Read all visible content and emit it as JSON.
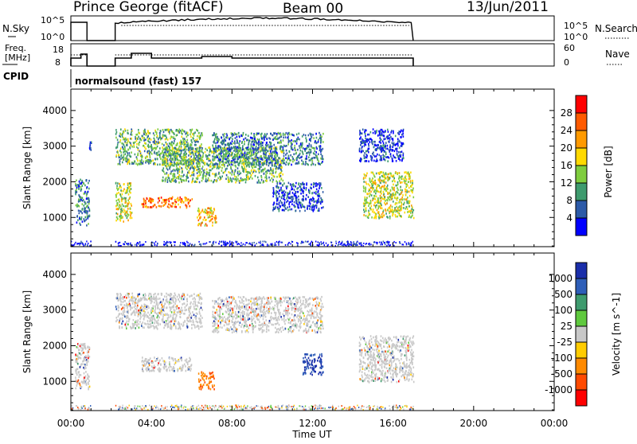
{
  "header": {
    "station": "Prince George (fitACF)",
    "beam": "Beam 00",
    "date": "13/Jun/2011"
  },
  "nsky_panel": {
    "left_label": "N.Sky",
    "ticks_left": [
      "10^5",
      "10^0"
    ],
    "ticks_right": [
      "10^5",
      "10^0"
    ],
    "right_label": "N.Search"
  },
  "freq_panel": {
    "left_label_1": "Freq.",
    "left_label_2": "[MHz]",
    "ticks_left": [
      "18",
      "8"
    ],
    "ticks_right": [
      "60",
      "0"
    ],
    "right_label": "Nave"
  },
  "cpid": {
    "label": "CPID",
    "text": "normalsound (fast) 157"
  },
  "time_axis": {
    "label": "Time UT",
    "ticks": [
      "00:00",
      "04:00",
      "08:00",
      "12:00",
      "16:00",
      "20:00",
      "00:00"
    ]
  },
  "chart_data": [
    {
      "type": "heatmap",
      "ylabel": "Slant Range [km]",
      "yticks": [
        "1000",
        "2000",
        "3000",
        "4000"
      ],
      "y_range_km": [
        180,
        4600
      ],
      "x_range_hours": [
        0,
        24
      ],
      "colorbar": {
        "label": "Power [dB]",
        "ticks": [
          "4",
          "8",
          "12",
          "16",
          "20",
          "24",
          "28"
        ],
        "colors": [
          "#0000ff",
          "#2c5aa8",
          "#3e9b6e",
          "#7fcd3e",
          "#ffd900",
          "#ff9a00",
          "#ff5a00",
          "#ff0000"
        ]
      },
      "echo_regions": [
        {
          "t": [
            0.2,
            0.9
          ],
          "km": [
            800,
            2100
          ],
          "level": 2
        },
        {
          "t": [
            0.9,
            1.0
          ],
          "km": [
            2900,
            3200
          ],
          "level": 1
        },
        {
          "t": [
            2.2,
            3.0
          ],
          "km": [
            900,
            2000
          ],
          "level": 4
        },
        {
          "t": [
            2.2,
            6.5
          ],
          "km": [
            2500,
            3500
          ],
          "level": 3
        },
        {
          "t": [
            3.5,
            6.0
          ],
          "km": [
            1300,
            1600
          ],
          "level": 6
        },
        {
          "t": [
            6.2,
            7.2
          ],
          "km": [
            800,
            1300
          ],
          "level": 5
        },
        {
          "t": [
            4.5,
            10.5
          ],
          "km": [
            2000,
            3000
          ],
          "level": 3
        },
        {
          "t": [
            7.0,
            12.5
          ],
          "km": [
            2500,
            3400
          ],
          "level": 2
        },
        {
          "t": [
            10.0,
            12.5
          ],
          "km": [
            1200,
            2000
          ],
          "level": 1
        },
        {
          "t": [
            14.5,
            17.0
          ],
          "km": [
            1000,
            2300
          ],
          "level": 4
        },
        {
          "t": [
            14.3,
            16.5
          ],
          "km": [
            2600,
            3500
          ],
          "level": 1
        }
      ]
    },
    {
      "type": "heatmap",
      "ylabel": "Slant Range [km]",
      "yticks": [
        "1000",
        "2000",
        "3000",
        "4000"
      ],
      "y_range_km": [
        180,
        4600
      ],
      "x_range_hours": [
        0,
        24
      ],
      "colorbar": {
        "label": "Velocity [m s^-1]",
        "ticks": [
          "1000",
          "500",
          "100",
          "25",
          "-25",
          "-100",
          "-500",
          "-1000"
        ],
        "colors": [
          "#1a2eaa",
          "#2e5eb8",
          "#3e9b6e",
          "#5fc93e",
          "#c8c8c8",
          "#ffcc00",
          "#ff8a00",
          "#ff4a00",
          "#ff0000"
        ]
      },
      "echo_regions": [
        {
          "t": [
            0.2,
            0.9
          ],
          "km": [
            800,
            2100
          ],
          "level": "ground"
        },
        {
          "t": [
            2.2,
            6.5
          ],
          "km": [
            2500,
            3500
          ],
          "level": "ground"
        },
        {
          "t": [
            3.5,
            6.0
          ],
          "km": [
            1300,
            1700
          ],
          "level": "ground"
        },
        {
          "t": [
            6.3,
            7.1
          ],
          "km": [
            800,
            1300
          ],
          "level": "-500"
        },
        {
          "t": [
            7.0,
            12.5
          ],
          "km": [
            2400,
            3400
          ],
          "level": "ground"
        },
        {
          "t": [
            11.5,
            12.5
          ],
          "km": [
            1200,
            1800
          ],
          "level": "1000"
        },
        {
          "t": [
            14.3,
            17.0
          ],
          "km": [
            1000,
            2300
          ],
          "level": "ground"
        }
      ]
    }
  ],
  "timeline": {
    "nsky_steps_hours": [
      0,
      0.1,
      0.8,
      2.2,
      17.0
    ],
    "data_gaps_hours": [
      [
        1.0,
        2.2
      ]
    ],
    "end_hour": 17.0
  }
}
